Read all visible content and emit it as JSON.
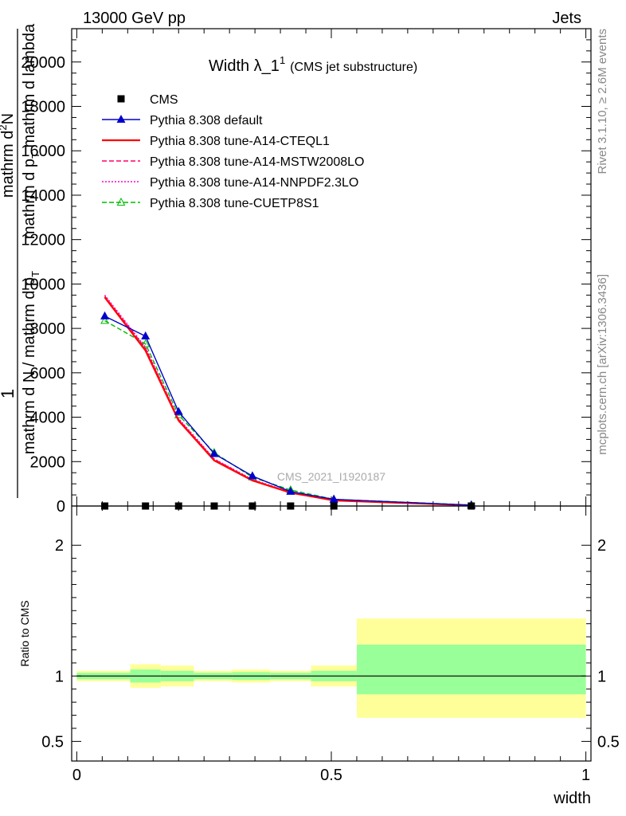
{
  "header": {
    "left": "13000 GeV pp",
    "right": "Jets"
  },
  "side_text": {
    "rivet": "Rivet 3.1.10, ≥ 2.6M events",
    "mcplots": "mcplots.cern.ch [arXiv:1306.3436]"
  },
  "watermark": "CMS_2021_I1920187",
  "colors": {
    "cms": "#000000",
    "default": "#0000cc",
    "cteql1": "#ff0000",
    "mstw": "#ff0066",
    "nnpdf": "#ff00cc",
    "cuetp": "#00bb00",
    "band_inner": "#99ff99",
    "band_outer": "#ffff99"
  },
  "chart_data": [
    {
      "type": "line",
      "title": "Width λ_1",
      "title_sup": "1",
      "subtitle": "(CMS jet substructure)",
      "ylabel_parts": {
        "numerator_one": "1",
        "denominator": "mathrm d N / mathrm d p",
        "denominator_sub": "T",
        "right_num": "mathrm d",
        "right_num_sup": "2",
        "right_num_rest": "N",
        "right_den": "mathrm d p",
        "right_den_sub": "T",
        "right_den_rest": " mathrm d lambda"
      },
      "ylim": [
        0,
        21500
      ],
      "xlim": [
        -0.01,
        1.01
      ],
      "y_ticks": [
        0,
        2000,
        4000,
        6000,
        8000,
        10000,
        12000,
        14000,
        16000,
        18000,
        20000
      ],
      "y_tick_labels": [
        "0",
        "2000",
        "4000",
        "6000",
        "8000",
        "10000",
        "12000",
        "14000",
        "16000",
        "18000",
        "20000"
      ],
      "legend_position": "top-left",
      "series": [
        {
          "name": "CMS",
          "key": "cms",
          "style": "marker-square",
          "x": [
            0.055,
            0.135,
            0.2,
            0.27,
            0.345,
            0.42,
            0.505,
            0.775
          ],
          "y": [
            0,
            0,
            0,
            0,
            0,
            0,
            0,
            0
          ]
        },
        {
          "name": "Pythia 8.308 default",
          "key": "default",
          "style": "solid-triangle",
          "x": [
            0.055,
            0.135,
            0.2,
            0.27,
            0.345,
            0.42,
            0.505,
            0.775
          ],
          "y": [
            8550,
            7650,
            4250,
            2350,
            1350,
            650,
            300,
            40
          ]
        },
        {
          "name": "Pythia 8.308 tune-A14-CTEQL1",
          "key": "cteql1",
          "style": "solid",
          "x": [
            0.055,
            0.135,
            0.2,
            0.27,
            0.345,
            0.42,
            0.505,
            0.775
          ],
          "y": [
            9400,
            7000,
            3850,
            2050,
            1150,
            600,
            250,
            30
          ]
        },
        {
          "name": "Pythia 8.308 tune-A14-MSTW2008LO",
          "key": "mstw",
          "style": "dashed",
          "x": [
            0.055,
            0.135,
            0.2,
            0.27,
            0.345,
            0.42,
            0.505,
            0.775
          ],
          "y": [
            9450,
            7100,
            3900,
            2100,
            1180,
            610,
            260,
            30
          ]
        },
        {
          "name": "Pythia 8.308 tune-A14-NNPDF2.3LO",
          "key": "nnpdf",
          "style": "dotted",
          "x": [
            0.055,
            0.135,
            0.2,
            0.27,
            0.345,
            0.42,
            0.505,
            0.775
          ],
          "y": [
            9500,
            7150,
            3950,
            2120,
            1200,
            620,
            270,
            32
          ]
        },
        {
          "name": "Pythia 8.308 tune-CUETP8S1",
          "key": "cuetp",
          "style": "dashed-open-triangle",
          "x": [
            0.055,
            0.135,
            0.2,
            0.27,
            0.345,
            0.42,
            0.505,
            0.775
          ],
          "y": [
            8350,
            7300,
            4100,
            2400,
            1300,
            720,
            300,
            45
          ]
        }
      ]
    },
    {
      "type": "area",
      "ylabel": "Ratio to CMS",
      "xlabel": "width",
      "ylim": [
        0.35,
        2.3
      ],
      "xlim": [
        -0.01,
        1.01
      ],
      "reference_line": 1,
      "y_ticks": [
        0.5,
        1,
        2
      ],
      "y_tick_labels": [
        "0.5",
        "1",
        "2"
      ],
      "x_ticks": [
        0,
        0.5,
        1
      ],
      "x_tick_labels": [
        "0",
        "0.5",
        "1"
      ],
      "bins": [
        {
          "lo": 0.0,
          "hi": 0.105,
          "inner": [
            0.975,
            1.025
          ],
          "outer": [
            0.96,
            1.04
          ]
        },
        {
          "lo": 0.105,
          "hi": 0.165,
          "inner": [
            0.95,
            1.05
          ],
          "outer": [
            0.91,
            1.09
          ]
        },
        {
          "lo": 0.165,
          "hi": 0.23,
          "inner": [
            0.96,
            1.04
          ],
          "outer": [
            0.92,
            1.08
          ]
        },
        {
          "lo": 0.23,
          "hi": 0.305,
          "inner": [
            0.975,
            1.025
          ],
          "outer": [
            0.96,
            1.04
          ]
        },
        {
          "lo": 0.305,
          "hi": 0.38,
          "inner": [
            0.97,
            1.03
          ],
          "outer": [
            0.95,
            1.05
          ]
        },
        {
          "lo": 0.38,
          "hi": 0.46,
          "inner": [
            0.975,
            1.025
          ],
          "outer": [
            0.96,
            1.04
          ]
        },
        {
          "lo": 0.46,
          "hi": 0.55,
          "inner": [
            0.96,
            1.04
          ],
          "outer": [
            0.92,
            1.08
          ]
        },
        {
          "lo": 0.55,
          "hi": 1.0,
          "inner": [
            0.86,
            1.24
          ],
          "outer": [
            0.68,
            1.44
          ]
        }
      ]
    }
  ]
}
